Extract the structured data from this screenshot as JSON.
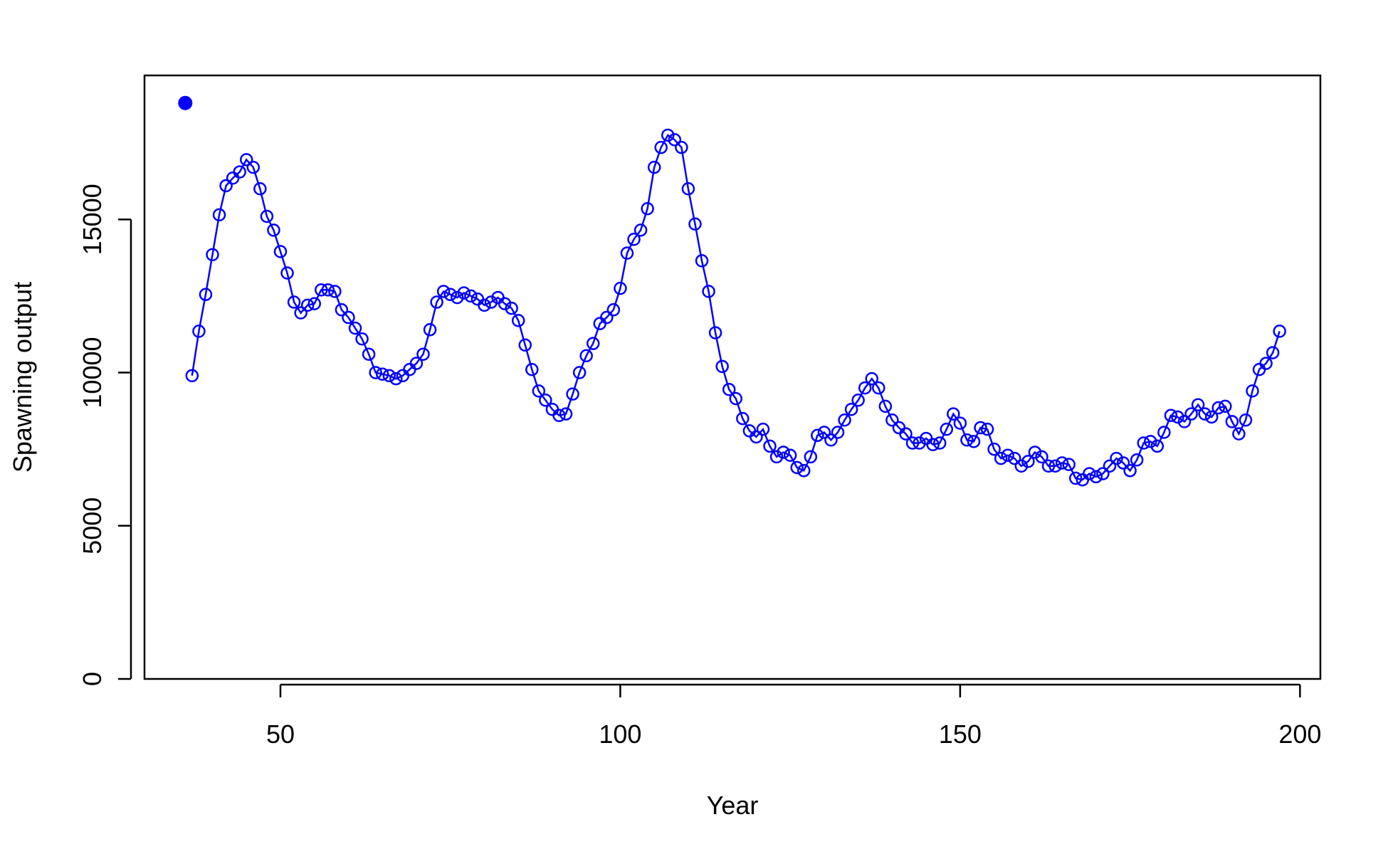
{
  "chart_data": {
    "type": "line",
    "title": "",
    "xlabel": "Year",
    "ylabel": "Spawning output",
    "xlim": [
      30,
      203
    ],
    "ylim": [
      0,
      19700
    ],
    "x_ticks": [
      50,
      100,
      150,
      200
    ],
    "y_ticks": [
      0,
      5000,
      10000,
      15000
    ],
    "grid": false,
    "legend": "none",
    "color": "#0000FF",
    "virgin_point": {
      "x": 36,
      "y": 18800
    },
    "series": [
      {
        "x": [
          37,
          38,
          39,
          40,
          41,
          42,
          43,
          44,
          45,
          46,
          47,
          48,
          49,
          50,
          51,
          52,
          53,
          54,
          55,
          56,
          57,
          58,
          59,
          60,
          61,
          62,
          63,
          64,
          65,
          66,
          67,
          68,
          69,
          70,
          71,
          72,
          73,
          74,
          75,
          76,
          77,
          78,
          79,
          80,
          81,
          82,
          83,
          84,
          85,
          86,
          87,
          88,
          89,
          90,
          91,
          92,
          93,
          94,
          95,
          96,
          97,
          98,
          99,
          100,
          101,
          102,
          103,
          104,
          105,
          106,
          107,
          108,
          109,
          110,
          111,
          112,
          113,
          114,
          115,
          116,
          117,
          118,
          119,
          120,
          121,
          122,
          123,
          124,
          125,
          126,
          127,
          128,
          129,
          130,
          131,
          132,
          133,
          134,
          135,
          136,
          137,
          138,
          139,
          140,
          141,
          142,
          143,
          144,
          145,
          146,
          147,
          148,
          149,
          150,
          151,
          152,
          153,
          154,
          155,
          156,
          157,
          158,
          159,
          160,
          161,
          162,
          163,
          164,
          165,
          166,
          167,
          168,
          169,
          170,
          171,
          172,
          173,
          174,
          175,
          176,
          177,
          178,
          179,
          180,
          181,
          182,
          183,
          184,
          185,
          186,
          187,
          188,
          189,
          190,
          191,
          192,
          193,
          194,
          195,
          196,
          197
        ],
        "values": [
          9900,
          11350,
          12550,
          13850,
          15150,
          16100,
          16350,
          16550,
          16950,
          16700,
          16000,
          15100,
          14650,
          13950,
          13250,
          12300,
          11950,
          12200,
          12250,
          12700,
          12700,
          12650,
          12050,
          11800,
          11450,
          11100,
          10600,
          10000,
          9950,
          9900,
          9800,
          9900,
          10100,
          10300,
          10600,
          11400,
          12300,
          12650,
          12550,
          12450,
          12600,
          12500,
          12400,
          12200,
          12300,
          12450,
          12250,
          12100,
          11700,
          10900,
          10100,
          9400,
          9100,
          8800,
          8600,
          8650,
          9300,
          10000,
          10550,
          10950,
          11600,
          11800,
          12050,
          12750,
          13900,
          14350,
          14650,
          15350,
          16700,
          17350,
          17750,
          17600,
          17350,
          16000,
          14850,
          13650,
          12650,
          11300,
          10200,
          9450,
          9150,
          8500,
          8100,
          7900,
          8150,
          7600,
          7250,
          7400,
          7300,
          6900,
          6800,
          7250,
          7950,
          8050,
          7800,
          8050,
          8450,
          8800,
          9100,
          9500,
          9800,
          9500,
          8900,
          8450,
          8200,
          8000,
          7700,
          7700,
          7850,
          7650,
          7700,
          8150,
          8650,
          8350,
          7800,
          7750,
          8200,
          8150,
          7500,
          7200,
          7300,
          7200,
          6950,
          7100,
          7400,
          7250,
          6950,
          6950,
          7050,
          7000,
          6550,
          6500,
          6700,
          6600,
          6700,
          6950,
          7200,
          7050,
          6800,
          7150,
          7700,
          7750,
          7600,
          8050,
          8600,
          8550,
          8400,
          8650,
          8950,
          8650,
          8550,
          8850,
          8900,
          8400,
          8000,
          8450,
          9400,
          10100,
          10300,
          10650,
          11350
        ]
      }
    ]
  }
}
